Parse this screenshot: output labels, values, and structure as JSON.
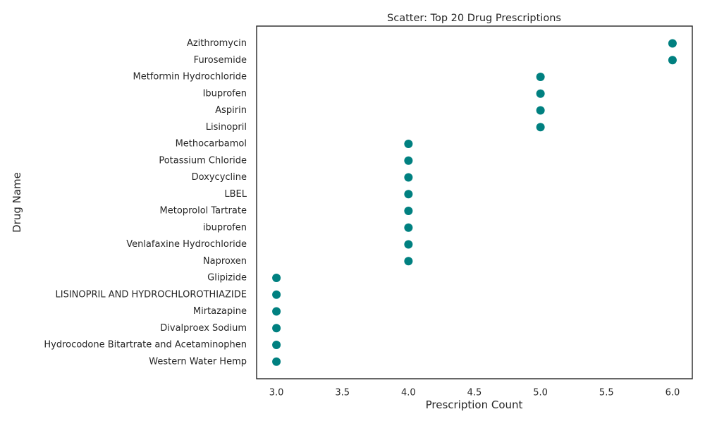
{
  "chart_data": {
    "type": "scatter",
    "title": "Scatter: Top 20 Drug Prescriptions",
    "xlabel": "Prescription Count",
    "ylabel": "Drug Name",
    "xlim": [
      2.85,
      6.15
    ],
    "xticks": [
      3.0,
      3.5,
      4.0,
      4.5,
      5.0,
      5.5,
      6.0
    ],
    "xtick_labels": [
      "3.0",
      "3.5",
      "4.0",
      "4.5",
      "5.0",
      "5.5",
      "6.0"
    ],
    "grid": false,
    "legend": false,
    "marker_color": "#008080",
    "categories": [
      "Azithromycin",
      "Furosemide",
      "Metformin Hydrochloride",
      "Ibuprofen",
      "Aspirin",
      "Lisinopril",
      "Methocarbamol",
      "Potassium Chloride",
      "Doxycycline",
      "LBEL",
      "Metoprolol Tartrate",
      "ibuprofen",
      "Venlafaxine Hydrochloride",
      "Naproxen",
      "Glipizide",
      "LISINOPRIL AND HYDROCHLOROTHIAZIDE",
      "Mirtazapine",
      "Divalproex Sodium",
      "Hydrocodone Bitartrate and Acetaminophen",
      "Western Water Hemp"
    ],
    "values": [
      6,
      6,
      5,
      5,
      5,
      5,
      4,
      4,
      4,
      4,
      4,
      4,
      4,
      4,
      3,
      3,
      3,
      3,
      3,
      3
    ]
  }
}
